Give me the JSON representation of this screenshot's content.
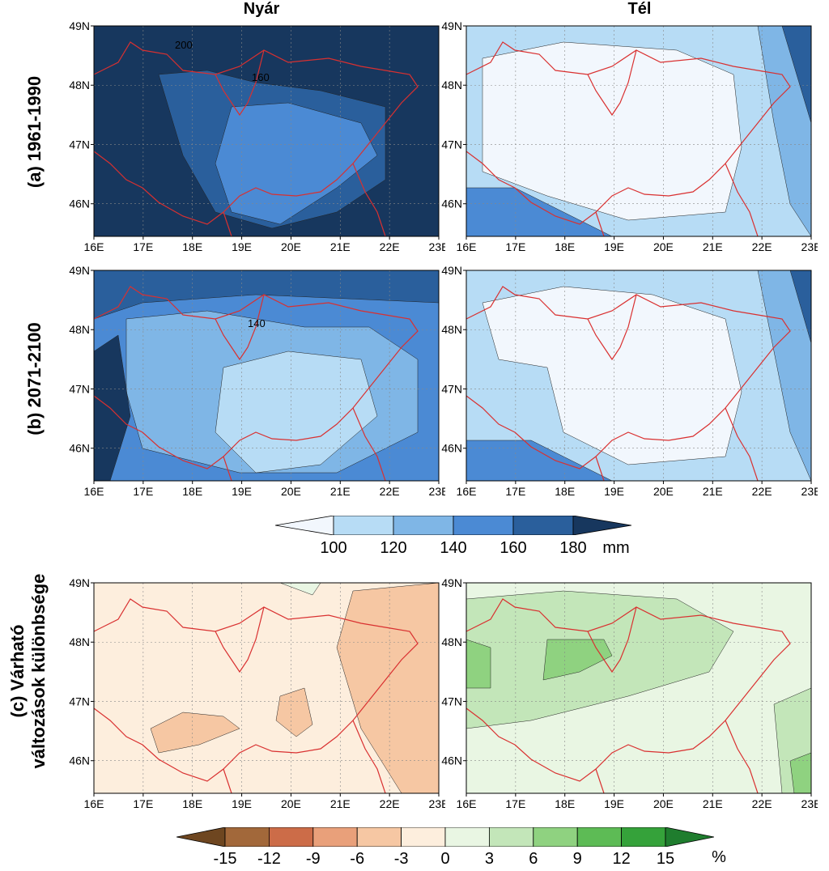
{
  "columns": {
    "summer": "Nyár",
    "winter": "Tél"
  },
  "rows": {
    "a": "(a) 1961-1990",
    "b": "(b) 2071-2100",
    "c_line1": "(c) Várható",
    "c_line2": "változások különbsége"
  },
  "axes": {
    "lon_ticks": [
      "16E",
      "17E",
      "18E",
      "19E",
      "20E",
      "21E",
      "22E",
      "23E"
    ],
    "lat_ticks": [
      "49N",
      "48N",
      "47N",
      "46N"
    ]
  },
  "contour_labels": {
    "a_summer_1": "200",
    "a_summer_2": "160",
    "b_summer_1": "140"
  },
  "precip_colorbar": {
    "labels": [
      "100",
      "120",
      "140",
      "160",
      "180"
    ],
    "unit": "mm",
    "colors": [
      "#f2f7fd",
      "#b7dcf5",
      "#7fb6e6",
      "#4b8ad4",
      "#2a5f9c",
      "#17375e"
    ]
  },
  "change_colorbar": {
    "labels": [
      "-15",
      "-12",
      "-9",
      "-6",
      "-3",
      "0",
      "3",
      "6",
      "9",
      "12",
      "15"
    ],
    "unit": "%",
    "colors": [
      "#6e4620",
      "#a2683a",
      "#cc6c48",
      "#e9a07a",
      "#f6c7a3",
      "#fdeedd",
      "#e9f6e3",
      "#c3e6b9",
      "#8fd280",
      "#5dbb55",
      "#35a23a",
      "#1f7d2e"
    ]
  },
  "map_colors": {
    "border": "#d93030",
    "blue_0": "#f2f7fd",
    "blue_1": "#b7dcf5",
    "blue_2": "#7fb6e6",
    "blue_3": "#4b8ad4",
    "blue_4": "#2a5f9c",
    "blue_5": "#17375e",
    "orange_0": "#fdeedd",
    "orange_1": "#f6c7a3",
    "green_0": "#e9f6e3",
    "green_1": "#c3e6b9",
    "green_2": "#8fd280"
  }
}
